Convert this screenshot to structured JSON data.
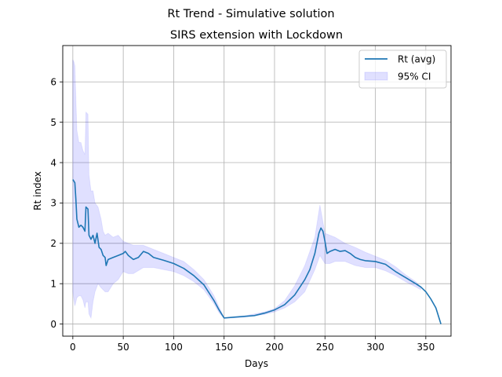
{
  "chart_data": {
    "type": "line",
    "suptitle": "Rt Trend - Simulative solution",
    "title": "SIRS extension with Lockdown",
    "xlabel": "Days",
    "ylabel": "Rt index",
    "xlim": [
      -10,
      375
    ],
    "ylim": [
      -0.3,
      6.9
    ],
    "xticks": [
      0,
      50,
      100,
      150,
      200,
      250,
      300,
      350
    ],
    "yticks": [
      0,
      1,
      2,
      3,
      4,
      5,
      6
    ],
    "grid": true,
    "legend_position": "top-right",
    "series": [
      {
        "name": "Rt (avg)",
        "color": "#1f77b4",
        "x": [
          0,
          2,
          3,
          4,
          6,
          8,
          10,
          12,
          13,
          15,
          16,
          18,
          20,
          22,
          24,
          26,
          28,
          30,
          32,
          33,
          35,
          40,
          45,
          50,
          52,
          55,
          60,
          65,
          70,
          75,
          80,
          90,
          100,
          110,
          120,
          130,
          140,
          145,
          150,
          160,
          170,
          180,
          190,
          200,
          210,
          220,
          230,
          235,
          240,
          244,
          246,
          248,
          250,
          252,
          255,
          260,
          265,
          270,
          275,
          280,
          285,
          290,
          300,
          310,
          320,
          330,
          340,
          345,
          350,
          355,
          360,
          365
        ],
        "values": [
          3.58,
          3.5,
          3.1,
          2.6,
          2.4,
          2.45,
          2.4,
          2.3,
          2.9,
          2.85,
          2.2,
          2.1,
          2.2,
          2.0,
          2.25,
          1.9,
          1.85,
          1.7,
          1.65,
          1.45,
          1.6,
          1.65,
          1.7,
          1.75,
          1.8,
          1.7,
          1.6,
          1.65,
          1.8,
          1.75,
          1.65,
          1.58,
          1.5,
          1.38,
          1.2,
          0.97,
          0.58,
          0.35,
          0.15,
          0.17,
          0.19,
          0.21,
          0.27,
          0.35,
          0.48,
          0.72,
          1.1,
          1.35,
          1.75,
          2.25,
          2.38,
          2.3,
          2.05,
          1.75,
          1.8,
          1.85,
          1.8,
          1.82,
          1.75,
          1.65,
          1.6,
          1.57,
          1.55,
          1.48,
          1.3,
          1.15,
          1.0,
          0.92,
          0.8,
          0.62,
          0.4,
          0.0
        ]
      }
    ],
    "ci": {
      "name": "95% CI",
      "color": "#0000ff",
      "opacity": 0.12,
      "x": [
        0,
        1,
        2,
        3,
        4,
        6,
        8,
        10,
        12,
        13,
        15,
        16,
        18,
        20,
        22,
        25,
        28,
        30,
        32,
        35,
        40,
        45,
        50,
        55,
        60,
        70,
        80,
        90,
        100,
        110,
        120,
        130,
        140,
        145,
        150,
        170,
        190,
        200,
        210,
        220,
        230,
        240,
        245,
        250,
        255,
        260,
        270,
        280,
        290,
        300,
        310,
        320,
        330,
        340,
        345
      ],
      "upper": [
        6.55,
        6.5,
        6.4,
        5.6,
        4.8,
        4.5,
        4.5,
        4.3,
        4.2,
        5.25,
        5.2,
        3.7,
        3.3,
        3.3,
        3.0,
        2.9,
        2.6,
        2.3,
        2.2,
        2.25,
        2.15,
        2.2,
        2.05,
        2.0,
        1.95,
        1.95,
        1.85,
        1.75,
        1.65,
        1.55,
        1.35,
        1.1,
        0.7,
        0.42,
        0.16,
        0.2,
        0.3,
        0.38,
        0.58,
        0.95,
        1.45,
        2.15,
        2.95,
        2.25,
        2.2,
        2.15,
        2.0,
        1.9,
        1.78,
        1.68,
        1.58,
        1.42,
        1.22,
        1.05,
        0.92
      ],
      "lower": [
        0.8,
        0.6,
        0.45,
        0.55,
        0.65,
        0.7,
        0.7,
        0.6,
        0.4,
        0.55,
        0.55,
        0.25,
        0.15,
        0.55,
        0.8,
        1.0,
        0.9,
        0.85,
        0.8,
        0.8,
        1.0,
        1.1,
        1.3,
        1.25,
        1.25,
        1.4,
        1.4,
        1.35,
        1.3,
        1.2,
        1.05,
        0.85,
        0.5,
        0.28,
        0.14,
        0.17,
        0.24,
        0.3,
        0.4,
        0.55,
        0.8,
        1.35,
        1.7,
        1.5,
        1.5,
        1.55,
        1.55,
        1.45,
        1.4,
        1.4,
        1.32,
        1.2,
        1.05,
        0.92,
        0.85
      ]
    }
  }
}
